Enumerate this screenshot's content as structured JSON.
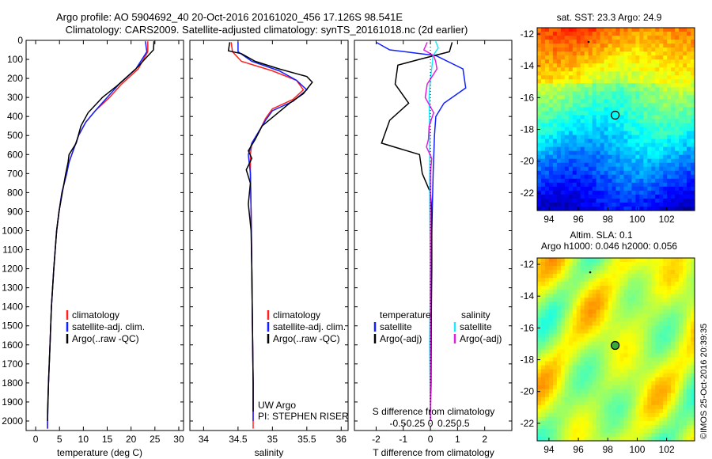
{
  "header": {
    "line1": "Argo profile: AO 5904692_40 20-Oct-2016 20161020_456 17.126S 98.541E",
    "line2": "Climatology: CARS2009. Satellite-adjusted climatology: synTS_20161018.nc (2d earlier)"
  },
  "colors": {
    "climatology": "#ff2020",
    "satellite": "#1020ff",
    "argo": "#000000",
    "sat_salinity": "#20e8ff",
    "argo_salinity": "#e020e0"
  },
  "chart_data": [
    {
      "type": "line",
      "panel": "temperature",
      "xlabel": "temperature (deg C)",
      "xticks": [
        0,
        5,
        10,
        15,
        20,
        25,
        30
      ],
      "xlim": [
        -2,
        31
      ],
      "ylim": [
        0,
        2050
      ],
      "yticks": [
        0,
        100,
        200,
        300,
        400,
        500,
        600,
        700,
        800,
        900,
        1000,
        1100,
        1200,
        1300,
        1400,
        1500,
        1600,
        1700,
        1800,
        1900,
        2000
      ],
      "legend": [
        "climatology",
        "satellite-adj. clim.",
        "Argo(..raw -QC)"
      ],
      "series": [
        {
          "name": "climatology",
          "points": [
            [
              23.5,
              5
            ],
            [
              23.5,
              60
            ],
            [
              21.5,
              150
            ],
            [
              18,
              230
            ],
            [
              15.5,
              300
            ],
            [
              12.5,
              370
            ],
            [
              10.5,
              430
            ],
            [
              9,
              500
            ],
            [
              8,
              570
            ],
            [
              7,
              640
            ],
            [
              6.5,
              700
            ],
            [
              5.5,
              800
            ],
            [
              4.9,
              900
            ],
            [
              4.4,
              1000
            ],
            [
              3.8,
              1200
            ],
            [
              3.3,
              1400
            ],
            [
              3,
              1600
            ],
            [
              2.7,
              1800
            ],
            [
              2.5,
              2000
            ],
            [
              2.5,
              2040
            ]
          ]
        },
        {
          "name": "satellite-adj. clim.",
          "points": [
            [
              23,
              5
            ],
            [
              23.3,
              60
            ],
            [
              21,
              150
            ],
            [
              17.5,
              230
            ],
            [
              15,
              300
            ],
            [
              12.5,
              370
            ],
            [
              10.5,
              430
            ],
            [
              9,
              500
            ],
            [
              8,
              570
            ],
            [
              7,
              640
            ],
            [
              6.5,
              700
            ],
            [
              5.5,
              800
            ],
            [
              4.9,
              900
            ],
            [
              4.4,
              1000
            ],
            [
              3.8,
              1200
            ],
            [
              3.3,
              1400
            ],
            [
              3,
              1600
            ],
            [
              2.7,
              1800
            ],
            [
              2.5,
              2000
            ],
            [
              2.5,
              2040
            ]
          ]
        },
        {
          "name": "Argo(..raw -QC)",
          "points": [
            [
              24.8,
              5
            ],
            [
              24.7,
              50
            ],
            [
              21,
              150
            ],
            [
              17,
              240
            ],
            [
              14,
              300
            ],
            [
              11,
              380
            ],
            [
              9.5,
              450
            ],
            [
              8.5,
              540
            ],
            [
              7,
              600
            ],
            [
              6.8,
              640
            ],
            [
              6.3,
              700
            ],
            [
              5.6,
              800
            ],
            [
              4.9,
              900
            ],
            [
              4.4,
              1000
            ],
            [
              3.8,
              1200
            ],
            [
              3.3,
              1400
            ],
            [
              3,
              1600
            ],
            [
              2.7,
              1800
            ],
            [
              2.5,
              1950
            ],
            [
              2.5,
              2000
            ]
          ]
        }
      ]
    },
    {
      "type": "line",
      "panel": "salinity",
      "xlabel": "salinity",
      "xticks": [
        34,
        34.5,
        35,
        35.5,
        36
      ],
      "xlim": [
        33.8,
        36.1
      ],
      "ylim": [
        0,
        2050
      ],
      "legend": [
        "climatology",
        "satellite-adj. clim.",
        "Argo(..raw -QC)"
      ],
      "annotation": [
        "UW Argo",
        "PI: STEPHEN RISER"
      ],
      "series": [
        {
          "name": "climatology",
          "points": [
            [
              34.4,
              10
            ],
            [
              34.42,
              60
            ],
            [
              34.55,
              110
            ],
            [
              35.0,
              160
            ],
            [
              35.35,
              210
            ],
            [
              35.45,
              260
            ],
            [
              35.3,
              310
            ],
            [
              35.0,
              360
            ],
            [
              34.9,
              410
            ],
            [
              34.82,
              470
            ],
            [
              34.7,
              540
            ],
            [
              34.68,
              600
            ],
            [
              34.68,
              700
            ],
            [
              34.69,
              900
            ],
            [
              34.7,
              1200
            ],
            [
              34.71,
              1500
            ],
            [
              34.72,
              1800
            ],
            [
              34.72,
              2040
            ]
          ]
        },
        {
          "name": "satellite-adj. clim.",
          "points": [
            [
              34.5,
              10
            ],
            [
              34.5,
              60
            ],
            [
              34.7,
              110
            ],
            [
              35.1,
              160
            ],
            [
              35.35,
              210
            ],
            [
              35.5,
              260
            ],
            [
              35.3,
              320
            ],
            [
              35.0,
              370
            ],
            [
              34.9,
              420
            ],
            [
              34.8,
              480
            ],
            [
              34.7,
              540
            ],
            [
              34.65,
              600
            ],
            [
              34.68,
              700
            ],
            [
              34.69,
              900
            ],
            [
              34.7,
              1200
            ],
            [
              34.71,
              1500
            ],
            [
              34.72,
              1800
            ],
            [
              34.72,
              2000
            ]
          ]
        },
        {
          "name": "Argo(..raw -QC)",
          "points": [
            [
              34.38,
              10
            ],
            [
              34.36,
              55
            ],
            [
              34.55,
              70
            ],
            [
              34.75,
              110
            ],
            [
              35.1,
              150
            ],
            [
              35.5,
              190
            ],
            [
              35.58,
              220
            ],
            [
              35.45,
              280
            ],
            [
              35.25,
              330
            ],
            [
              35.05,
              390
            ],
            [
              34.85,
              450
            ],
            [
              34.75,
              520
            ],
            [
              34.65,
              580
            ],
            [
              34.7,
              620
            ],
            [
              34.62,
              680
            ],
            [
              34.68,
              750
            ],
            [
              34.65,
              860
            ],
            [
              34.69,
              1000
            ],
            [
              34.7,
              1200
            ],
            [
              34.71,
              1500
            ],
            [
              34.72,
              1800
            ],
            [
              34.72,
              1950
            ]
          ]
        }
      ]
    },
    {
      "type": "line",
      "panel": "difference",
      "xlabel": "T difference from climatology",
      "xlabel_top": "S difference from climatology",
      "xticks": [
        -2,
        -1,
        0,
        1,
        2
      ],
      "xticks_top": [
        -0.5,
        -0.25,
        0,
        0.25,
        0.5
      ],
      "xlim": [
        -2.8,
        3.0
      ],
      "ylim": [
        0,
        2050
      ],
      "legend": {
        "temperature": [
          "satellite",
          "Argo(-adj)"
        ],
        "salinity": [
          "satellite",
          "Argo(-adj)"
        ],
        "headers": [
          "temperature",
          "salinity"
        ]
      },
      "series": [
        {
          "name": "temperature satellite",
          "points": [
            [
              -2,
              10
            ],
            [
              -1.5,
              50
            ],
            [
              0.2,
              80
            ],
            [
              1.2,
              150
            ],
            [
              1.3,
              250
            ],
            [
              0.5,
              330
            ],
            [
              0.2,
              400
            ],
            [
              0.15,
              500
            ],
            [
              0.1,
              700
            ],
            [
              0.05,
              1000
            ],
            [
              0.02,
              1500
            ],
            [
              0.0,
              2000
            ]
          ]
        },
        {
          "name": "temperature Argo(-adj)",
          "points": [
            [
              0.8,
              10
            ],
            [
              0.7,
              60
            ],
            [
              -0.4,
              100
            ],
            [
              -1.2,
              130
            ],
            [
              -1.3,
              230
            ],
            [
              -0.8,
              330
            ],
            [
              -1.5,
              420
            ],
            [
              -1.8,
              540
            ],
            [
              -0.4,
              600
            ],
            [
              -0.3,
              700
            ],
            [
              0.0,
              800
            ],
            [
              0.05,
              900
            ],
            [
              0.05,
              1200
            ],
            [
              0.03,
              1500
            ],
            [
              0.02,
              1800
            ],
            [
              0.0,
              1950
            ]
          ]
        },
        {
          "name": "salinity satellite",
          "points": [
            [
              0.08,
              5
            ],
            [
              0.12,
              40
            ],
            [
              0.04,
              80
            ],
            [
              0.03,
              120
            ],
            [
              0.0,
              200
            ],
            [
              -0.02,
              300
            ],
            [
              -0.01,
              500
            ],
            [
              -0.01,
              800
            ],
            [
              0.0,
              1200
            ],
            [
              -0.01,
              1600
            ],
            [
              0.0,
              2000
            ]
          ]
        },
        {
          "name": "salinity Argo(-adj)",
          "points": [
            [
              -0.05,
              10
            ],
            [
              -0.1,
              50
            ],
            [
              0.05,
              80
            ],
            [
              0.08,
              110
            ],
            [
              0.1,
              150
            ],
            [
              -0.05,
              230
            ],
            [
              -0.08,
              300
            ],
            [
              0.05,
              380
            ],
            [
              -0.02,
              450
            ],
            [
              -0.03,
              520
            ],
            [
              -0.06,
              560
            ],
            [
              0.02,
              620
            ],
            [
              0.0,
              700
            ],
            [
              0.0,
              800
            ],
            [
              0.0,
              1000
            ],
            [
              0.0,
              1500
            ],
            [
              0.0,
              2000
            ]
          ]
        }
      ]
    },
    {
      "type": "heatmap",
      "panel": "satellite SST map",
      "title": "sat. SST: 23.3 Argo: 24.9",
      "xticks": [
        94,
        96,
        98,
        100,
        102
      ],
      "yticks": [
        -12,
        -14,
        -16,
        -18,
        -20,
        -22
      ],
      "xlim": [
        93.2,
        103.9
      ],
      "ylim": [
        -23.1,
        -11.6
      ],
      "marker": {
        "lon": 98.5,
        "lat": -17.1
      },
      "colormap": "jet"
    },
    {
      "type": "heatmap",
      "panel": "altimetry SLA map",
      "title_line1": "Altim. SLA: 0.1",
      "title_line2": "Argo h1000: 0.046 h2000: 0.056",
      "xticks": [
        94,
        96,
        98,
        100,
        102
      ],
      "yticks": [
        -12,
        -14,
        -16,
        -18,
        -20,
        -22
      ],
      "xlim": [
        93.2,
        103.9
      ],
      "ylim": [
        -23.1,
        -11.6
      ],
      "marker": {
        "lon": 98.5,
        "lat": -17.1
      },
      "colormap": "jet"
    }
  ],
  "footer": {
    "credit": "©IMOS 25-Oct-2016 20:39:35"
  }
}
